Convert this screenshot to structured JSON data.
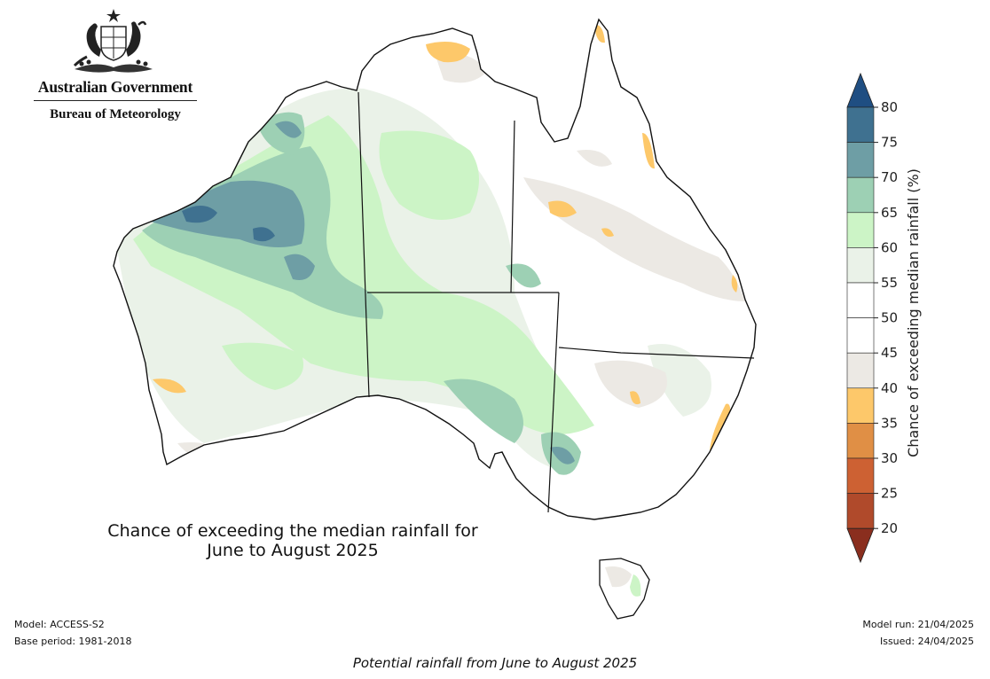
{
  "agency": {
    "government": "Australian Government",
    "bureau": "Bureau of Meteorology"
  },
  "map": {
    "title_line1": "Chance of exceeding the median rainfall for",
    "title_line2": "June to August 2025"
  },
  "colorbar": {
    "label": "Chance of exceeding median rainfall (%)",
    "ticks": [
      "80",
      "75",
      "70",
      "65",
      "60",
      "55",
      "50",
      "45",
      "40",
      "35",
      "30",
      "25",
      "20"
    ],
    "colors": {
      "80": "#1f4e82",
      "75-80": "#3f7190",
      "70-75": "#6e9ea5",
      "65-70": "#9dd0b4",
      "60-65": "#ccf4c6",
      "55-60": "#eaf2e8",
      "50-55": "#ffffff",
      "45-50": "#ffffff",
      "40-45": "#ece9e4",
      "35-40": "#fdc86a",
      "30-35": "#e08f45",
      "25-30": "#cd6133",
      "20-25": "#b04a2b",
      "20": "#8a2e1e"
    }
  },
  "meta": {
    "model": "Model: ACCESS-S2",
    "base_period": "Base period: 1981-2018",
    "model_run": "Model run: 21/04/2025",
    "issued": "Issued: 24/04/2025"
  },
  "caption": "Potential rainfall from June to August 2025"
}
